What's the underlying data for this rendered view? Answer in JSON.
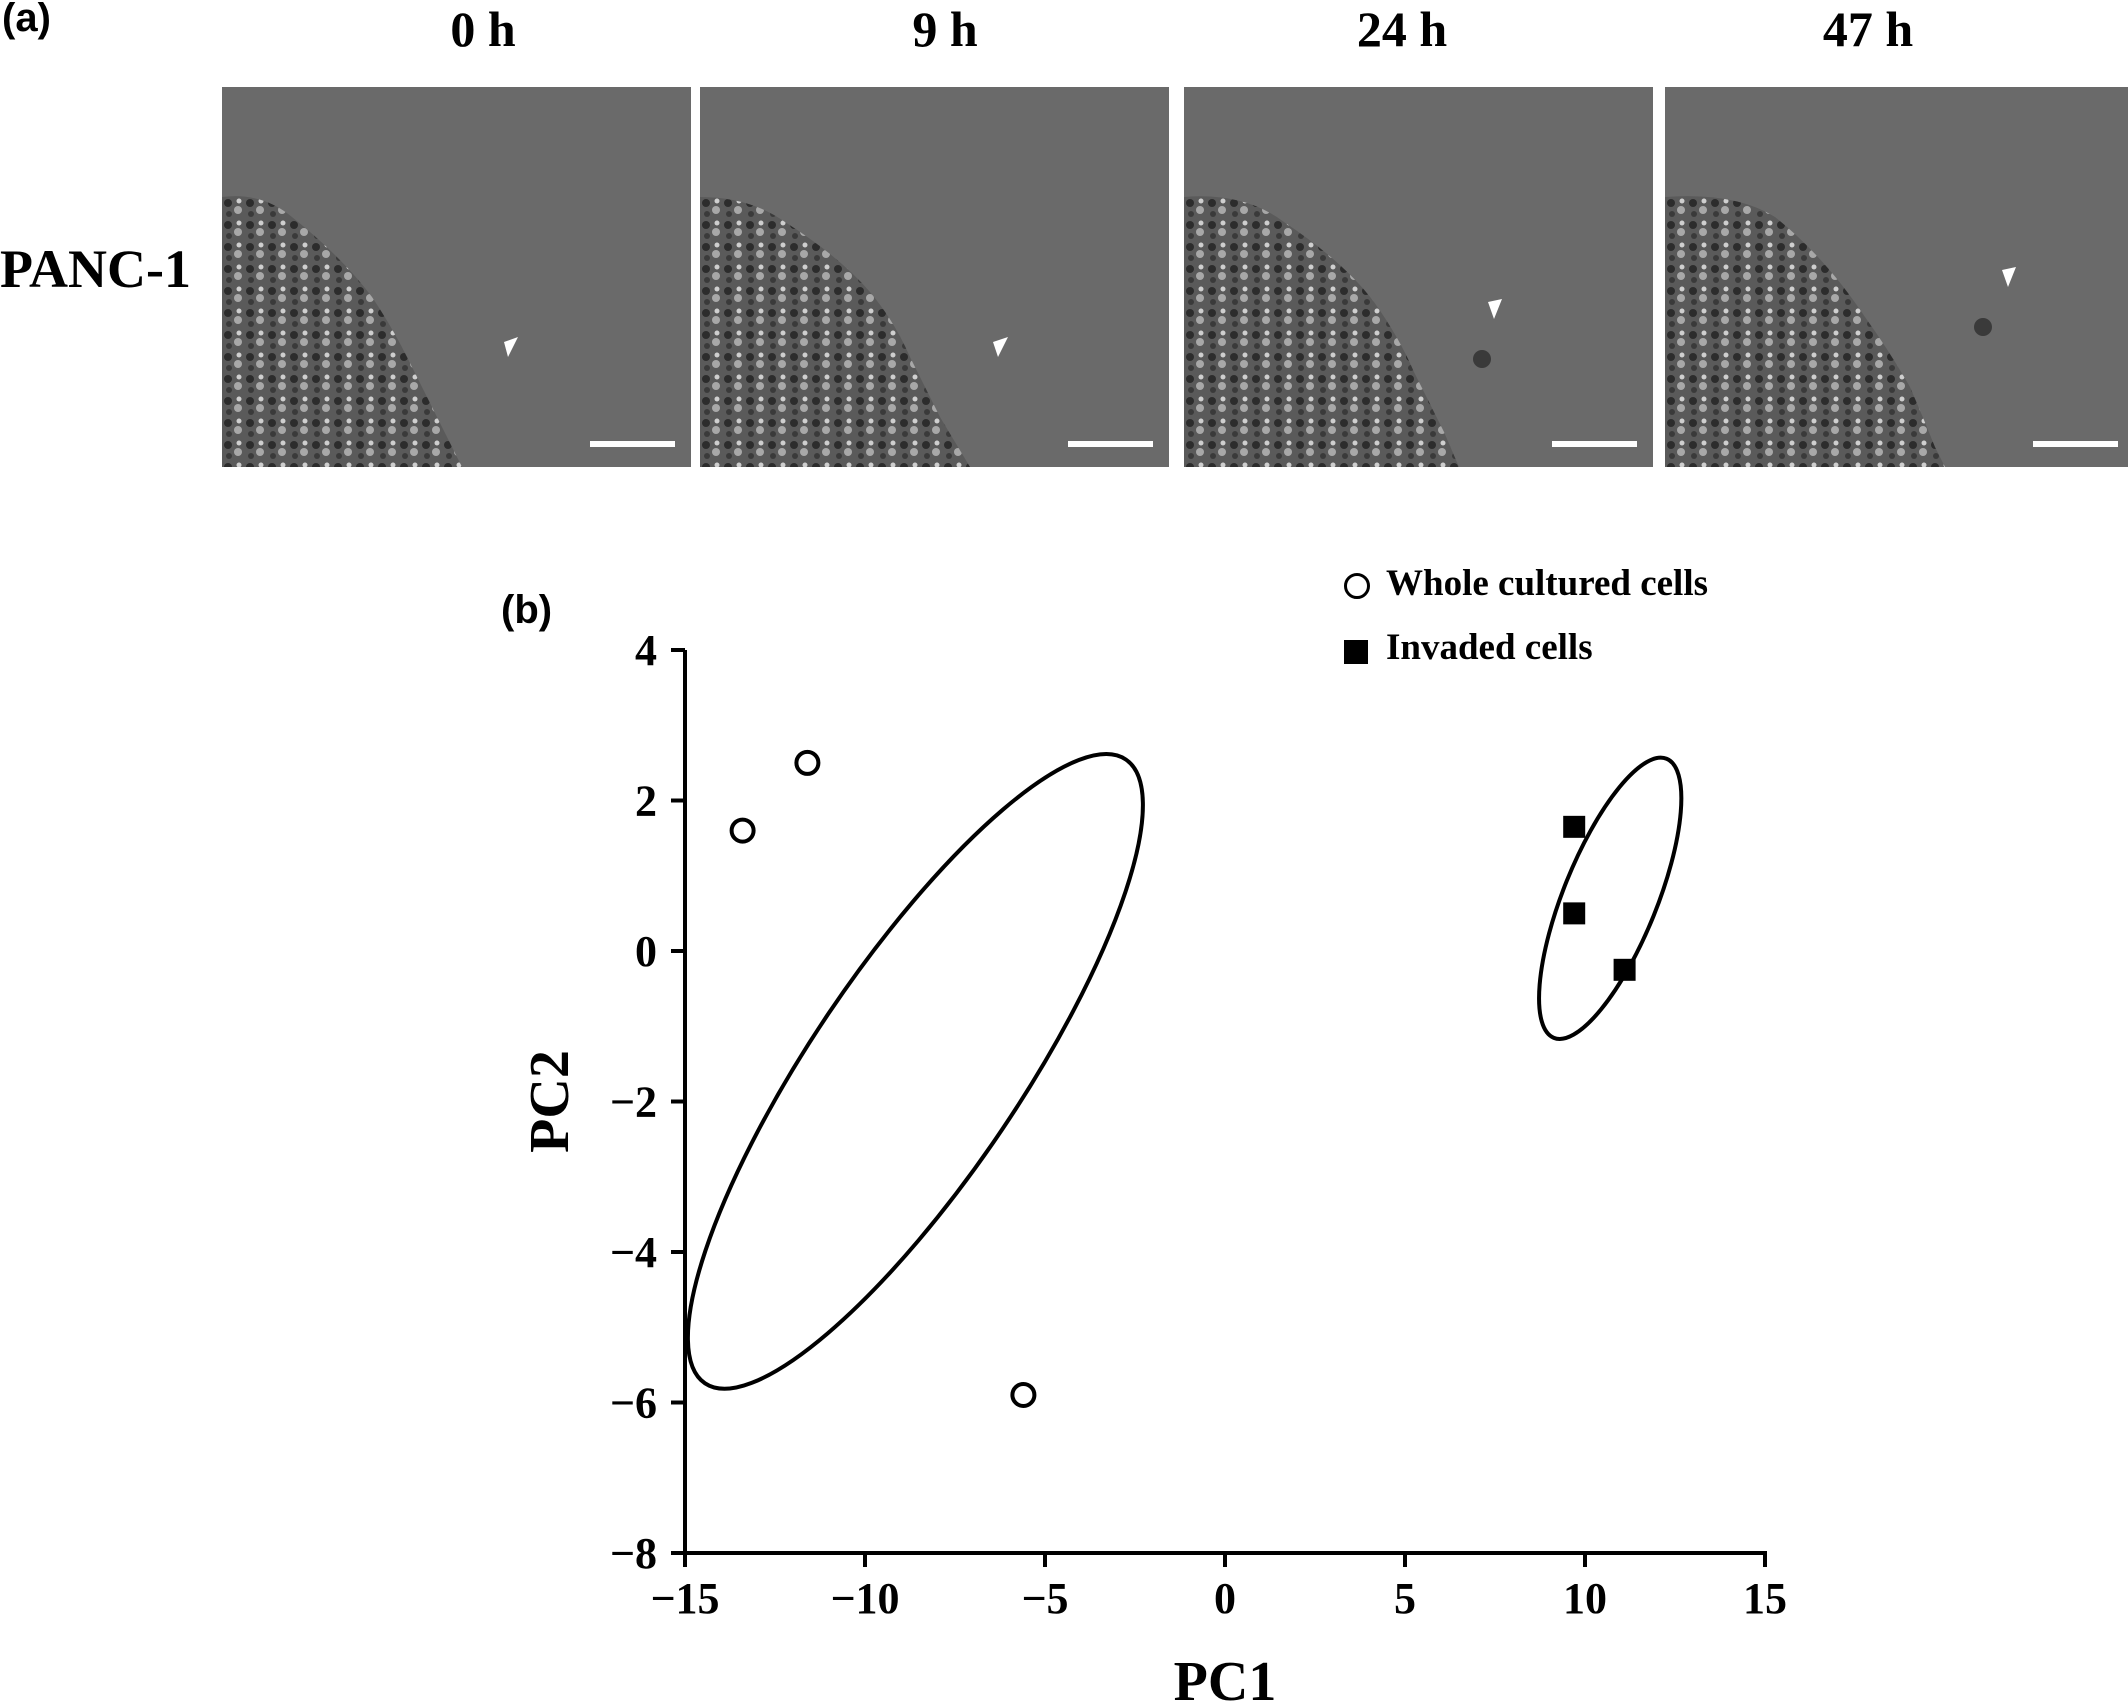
{
  "panel_a": {
    "label": "(a)",
    "row_label": "PANC-1",
    "timepoints": [
      "0 h",
      "9 h",
      "24 h",
      "47 h"
    ]
  },
  "panel_b": {
    "label": "(b)"
  },
  "colors": {
    "micrograph_background": "#6a6a6a",
    "cell_mass": "#5a5a5a",
    "arrowhead": "#ffffff",
    "scale_bar": "#ffffff",
    "ink": "#000000"
  },
  "chart_data": {
    "type": "scatter",
    "xlabel": "PC1",
    "ylabel": "PC2",
    "xlim": [
      -15,
      15
    ],
    "ylim": [
      -8,
      4
    ],
    "xticks": [
      -15,
      -10,
      -5,
      0,
      5,
      10,
      15
    ],
    "yticks": [
      -8,
      -6,
      -4,
      -2,
      0,
      2,
      4
    ],
    "xtick_labels": [
      "−15",
      "−10",
      "−5",
      "0",
      "5",
      "10",
      "15"
    ],
    "ytick_labels": [
      "−8",
      "−6",
      "−4",
      "−2",
      "0",
      "2",
      "4"
    ],
    "grid": false,
    "legend_position": "top-right",
    "series": [
      {
        "name": "Whole cultured cells",
        "marker": "open-circle",
        "points": [
          [
            -13.4,
            1.6
          ],
          [
            -11.6,
            2.5
          ],
          [
            -5.6,
            -5.9
          ]
        ]
      },
      {
        "name": "Invaded cells",
        "marker": "filled-square",
        "points": [
          [
            9.7,
            1.65
          ],
          [
            9.7,
            0.5
          ],
          [
            11.1,
            -0.25
          ]
        ]
      }
    ],
    "ellipses": [
      {
        "center": [
          -8.6,
          -1.6
        ],
        "semi_axis_1": 5.0,
        "semi_axis_2": 2.9,
        "series": "Whole cultured cells"
      },
      {
        "center": [
          10.7,
          0.7
        ],
        "semi_axis_1": 2.0,
        "semi_axis_2": 1.3,
        "series": "Invaded cells"
      }
    ]
  }
}
